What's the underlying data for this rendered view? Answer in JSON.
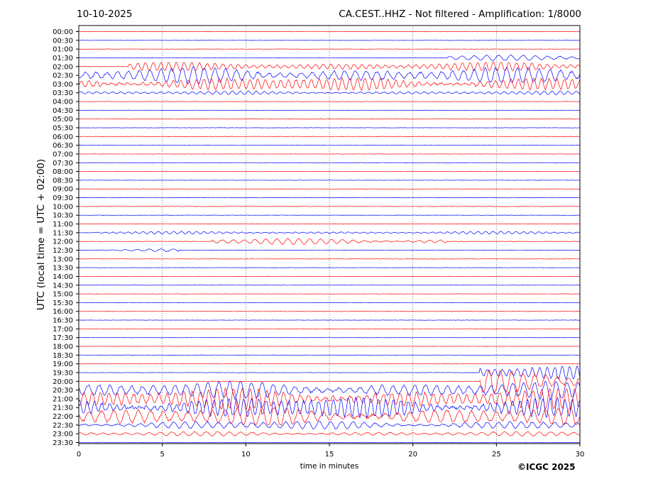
{
  "header": {
    "date": "10-10-2025",
    "title": "CA.CEST..HHZ - Not filtered - Amplification: 1/8000"
  },
  "footer": {
    "copyright": "©ICGC 2025"
  },
  "chart_data": {
    "type": "line",
    "title": "CA.CEST..HHZ - Not filtered - Amplification: 1/8000",
    "xlabel": "time in minutes",
    "ylabel": "UTC (local time = UTC + 02:00)",
    "xlim": [
      0,
      30
    ],
    "x_ticks": [
      0,
      5,
      10,
      15,
      20,
      25,
      30
    ],
    "x_grid": true,
    "trace_colors": [
      "#ff0000",
      "#0000ff"
    ],
    "row_labels": [
      "00:00",
      "00:30",
      "01:00",
      "01:30",
      "02:00",
      "02:30",
      "03:00",
      "03:30",
      "04:00",
      "04:30",
      "05:00",
      "05:30",
      "06:00",
      "06:30",
      "07:00",
      "07:30",
      "08:00",
      "08:30",
      "09:00",
      "09:30",
      "10:00",
      "10:30",
      "11:00",
      "11:30",
      "12:00",
      "12:30",
      "13:00",
      "13:30",
      "14:00",
      "14:30",
      "15:00",
      "15:30",
      "16:00",
      "16:30",
      "17:00",
      "17:30",
      "18:00",
      "18:30",
      "19:00",
      "19:30",
      "20:00",
      "20:30",
      "21:00",
      "21:30",
      "22:00",
      "22:30",
      "23:00",
      "23:30"
    ],
    "activity_windows": [
      {
        "row": 3,
        "x": [
          22,
          30
        ],
        "amplitude": 0.3
      },
      {
        "row": 4,
        "x": [
          3,
          30
        ],
        "amplitude": 0.5
      },
      {
        "row": 5,
        "x": [
          0,
          30
        ],
        "amplitude": 0.9
      },
      {
        "row": 6,
        "x": [
          0,
          30
        ],
        "amplitude": 0.8
      },
      {
        "row": 7,
        "x": [
          0,
          30
        ],
        "amplitude": 0.2
      },
      {
        "row": 23,
        "x": [
          1,
          30
        ],
        "amplitude": 0.15
      },
      {
        "row": 24,
        "x": [
          8,
          22
        ],
        "amplitude": 0.35
      },
      {
        "row": 25,
        "x": [
          1,
          6
        ],
        "amplitude": 0.2
      },
      {
        "row": 39,
        "x": [
          24,
          30
        ],
        "amplitude": 0.8
      },
      {
        "row": 40,
        "x": [
          24,
          30
        ],
        "amplitude": 1.3
      },
      {
        "row": 41,
        "x": [
          0,
          30
        ],
        "amplitude": 1.0
      },
      {
        "row": 42,
        "x": [
          0,
          30
        ],
        "amplitude": 1.2
      },
      {
        "row": 43,
        "x": [
          0,
          30
        ],
        "amplitude": 1.3
      },
      {
        "row": 44,
        "x": [
          0,
          30
        ],
        "amplitude": 1.1
      },
      {
        "row": 45,
        "x": [
          0,
          30
        ],
        "amplitude": 0.5
      },
      {
        "row": 46,
        "x": [
          0,
          30
        ],
        "amplitude": 0.25
      }
    ]
  }
}
